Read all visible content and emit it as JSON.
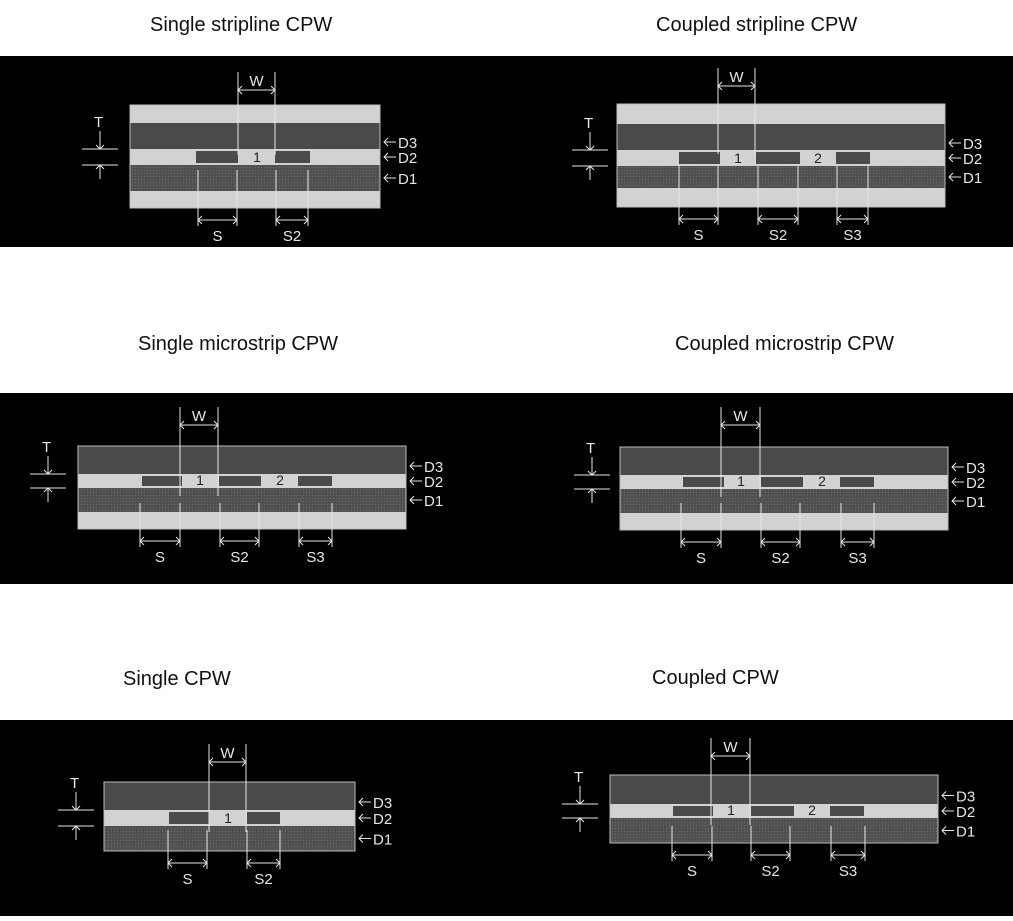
{
  "colors": {
    "background": "#ffffff",
    "panel": "#000000",
    "light_layer": "#d2d2d2",
    "dark_layer": "#4a4a4a",
    "conductor": "#4a4a4a",
    "annotation": "#e6e6e6"
  },
  "panels": [
    {
      "title": "Single stripline CPW",
      "labels": {
        "w": "W",
        "t": "T",
        "d3": "D3",
        "d2": "D2",
        "d1": "D1"
      },
      "strips": [
        "1"
      ],
      "gaps": [
        "S",
        "S2"
      ]
    },
    {
      "title": "Coupled stripline CPW",
      "labels": {
        "w": "W",
        "t": "T",
        "d3": "D3",
        "d2": "D2",
        "d1": "D1"
      },
      "strips": [
        "1",
        "2"
      ],
      "gaps": [
        "S",
        "S2",
        "S3"
      ]
    },
    {
      "title": "Single microstrip CPW",
      "labels": {
        "w": "W",
        "t": "T",
        "d3": "D3",
        "d2": "D2",
        "d1": "D1"
      },
      "strips": [
        "1",
        "2"
      ],
      "gaps": [
        "S",
        "S2",
        "S3"
      ]
    },
    {
      "title": "Coupled microstrip CPW",
      "labels": {
        "w": "W",
        "t": "T",
        "d3": "D3",
        "d2": "D2",
        "d1": "D1"
      },
      "strips": [
        "1",
        "2"
      ],
      "gaps": [
        "S",
        "S2",
        "S3"
      ]
    },
    {
      "title": "Single CPW",
      "labels": {
        "w": "W",
        "t": "T",
        "d3": "D3",
        "d2": "D2",
        "d1": "D1"
      },
      "strips": [
        "1"
      ],
      "gaps": [
        "S",
        "S2"
      ]
    },
    {
      "title": "Coupled CPW",
      "labels": {
        "w": "W",
        "t": "T",
        "d3": "D3",
        "d2": "D2",
        "d1": "D1"
      },
      "strips": [
        "1",
        "2"
      ],
      "gaps": [
        "S",
        "S2",
        "S3"
      ]
    }
  ]
}
